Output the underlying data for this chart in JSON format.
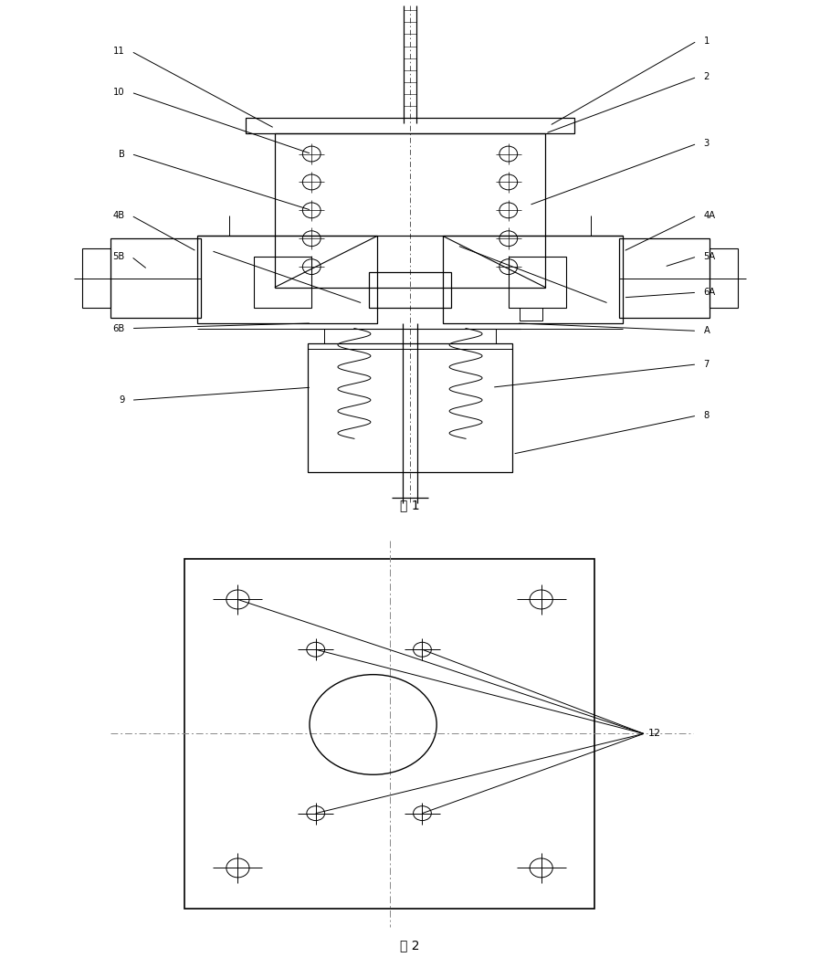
{
  "fig_width": 8.98,
  "fig_height": 10.6,
  "bg_color": "#ffffff",
  "line_color": "#000000",
  "fig1_caption": "图 1",
  "fig2_caption": "图 2",
  "label12": "12"
}
